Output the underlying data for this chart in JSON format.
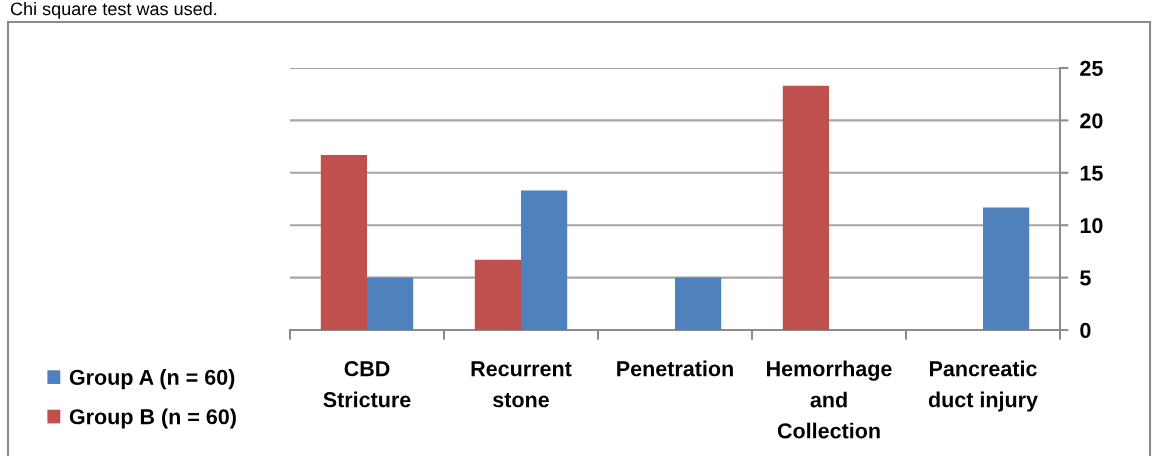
{
  "chart_data": {
    "type": "bar",
    "categories": [
      "CBD\nStricture",
      "Recurrent\nstone",
      "Penetration",
      "Hemorrhage\nand\nCollection",
      "Pancreatic\nduct injury"
    ],
    "series": [
      {
        "name": "Group B (n = 60)",
        "color": "#c0504d",
        "values": [
          16.7,
          6.7,
          0,
          23.3,
          0
        ]
      },
      {
        "name": "Group A (n = 60)",
        "color": "#4f81bd",
        "values": [
          5,
          13.3,
          5,
          0,
          11.7
        ]
      }
    ],
    "ylim": [
      0,
      25
    ],
    "yticks": [
      0,
      5,
      10,
      15,
      20,
      25
    ],
    "grid": "y",
    "legend": "bottom left",
    "annotations": [
      "Chi square test was used."
    ]
  }
}
